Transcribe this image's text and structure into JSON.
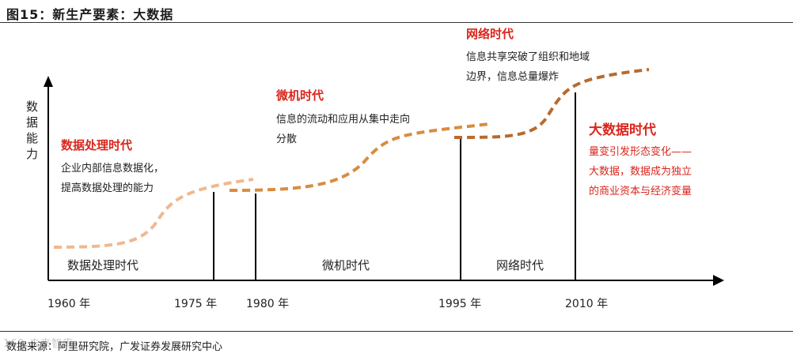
{
  "title": "图15：新生产要素：大数据",
  "y_axis_label": [
    "数",
    "据",
    "能",
    "力"
  ],
  "eras": [
    {
      "heading": "数据处理时代",
      "desc": [
        "企业内部信息数据化，",
        "提高数据处理的能力"
      ],
      "axis_label": "数据处理时代",
      "color": "#f0b890"
    },
    {
      "heading": "微机时代",
      "desc": [
        "信息的流动和应用从集中走向",
        "分散"
      ],
      "axis_label": "微机时代",
      "color": "#d98c40"
    },
    {
      "heading": "网络时代",
      "desc": [
        "信息共享突破了组织和地域",
        "边界，信息总量爆炸"
      ],
      "axis_label": "网络时代",
      "color": "#b86a2c"
    },
    {
      "heading": "大数据时代",
      "desc": [
        "量变引发形态变化——",
        "大数据，数据成为独立",
        "的商业资本与经济变量"
      ],
      "color": "#7a3b12"
    }
  ],
  "years": [
    "1960 年",
    "1975 年",
    "1980 年",
    "1995 年",
    "2010 年"
  ],
  "source": "数据来源：阿里研究院，广发证券发展研究中心",
  "watermark": "169 未来智库"
}
